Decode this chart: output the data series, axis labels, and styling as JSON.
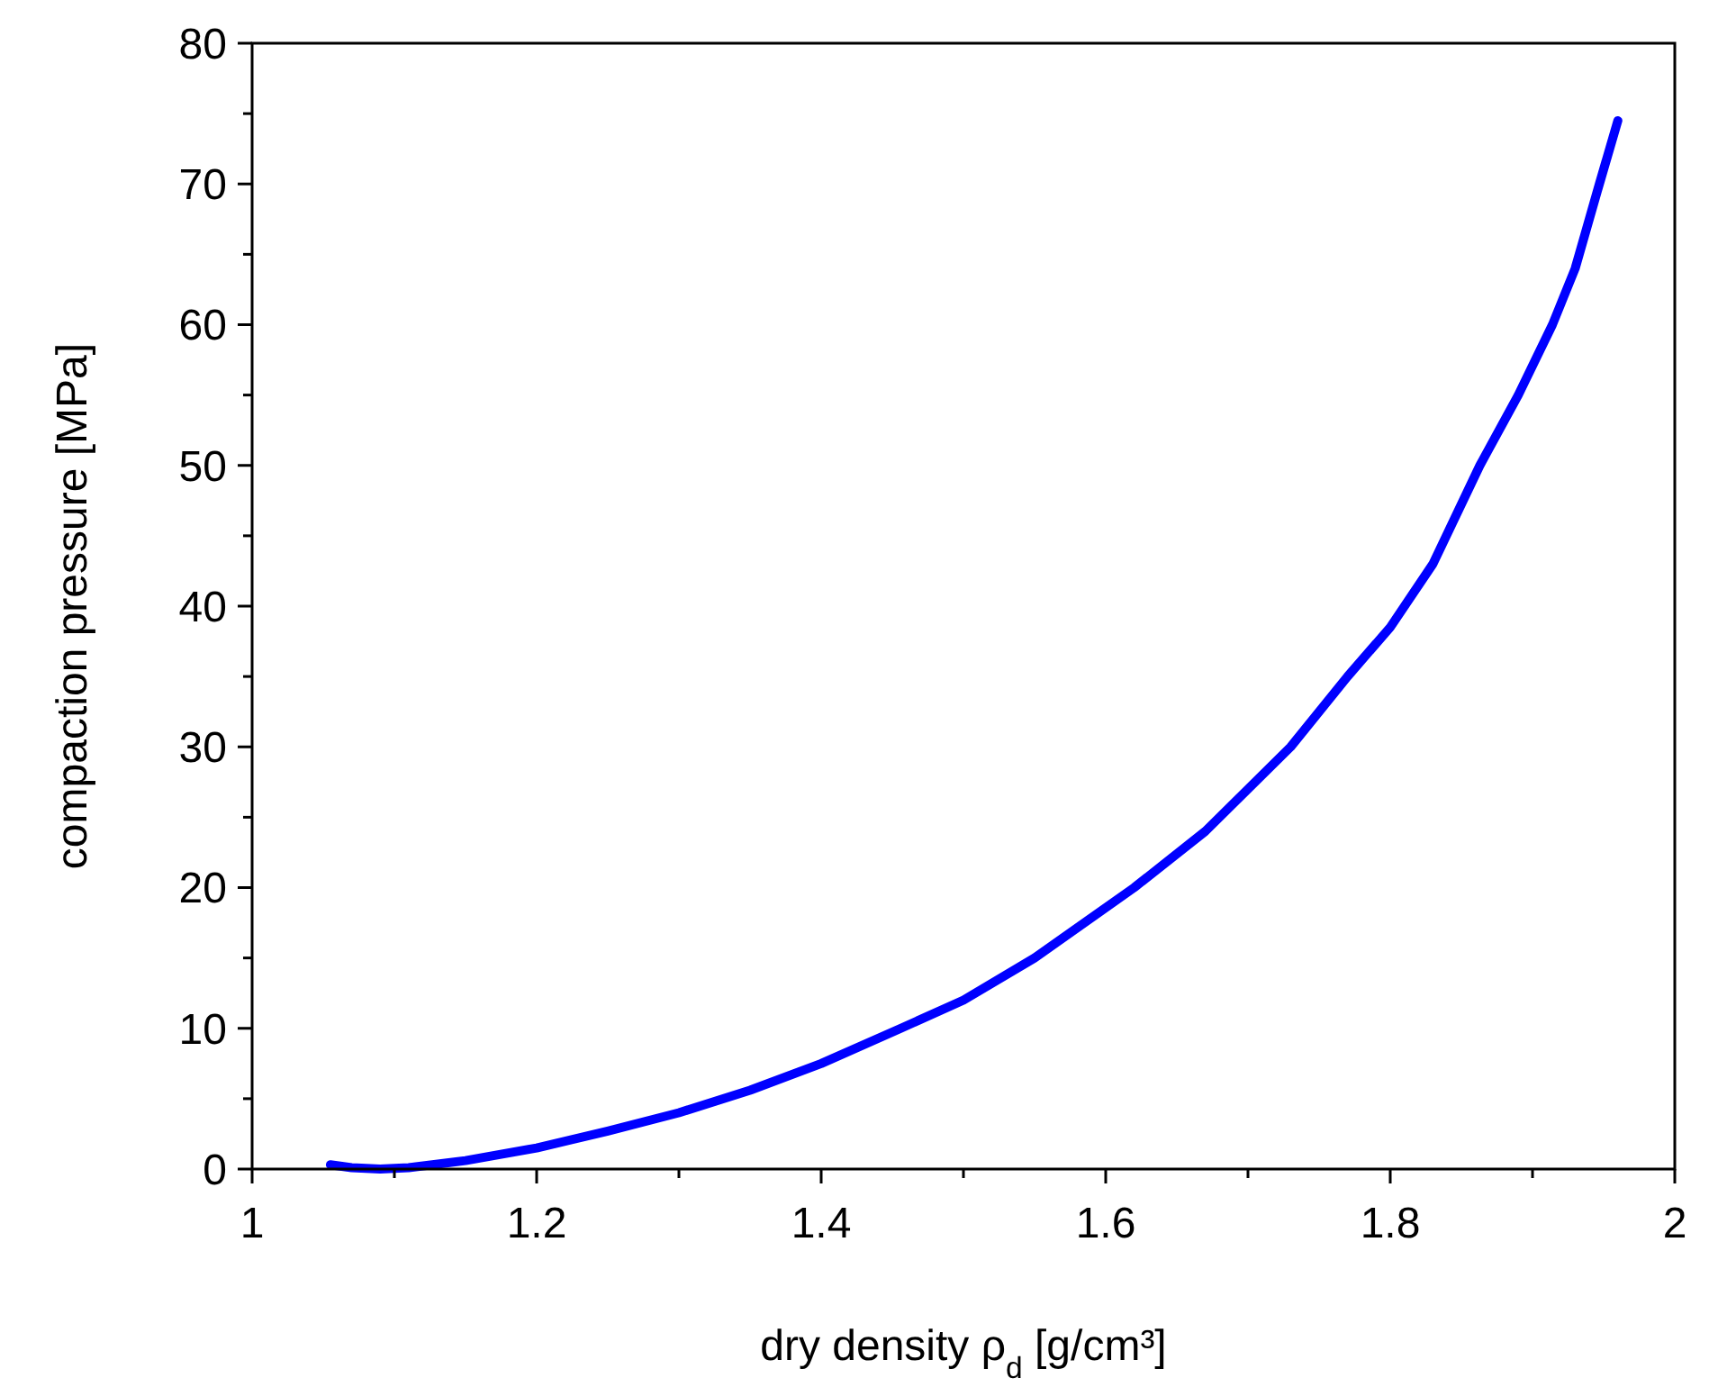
{
  "chart_data": {
    "type": "line",
    "xlabel": "dry density ρ$_{d}$ [g/cm³]",
    "ylabel": "compaction pressure [MPa]",
    "xlim": [
      1,
      2
    ],
    "ylim": [
      0,
      80
    ],
    "xticks": [
      1,
      {
        "value": 1.1,
        "label": null
      },
      1.2,
      {
        "value": 1.3,
        "label": null
      },
      1.4,
      {
        "value": 1.5,
        "label": null
      },
      1.6,
      {
        "value": 1.7,
        "label": null
      },
      1.8,
      {
        "value": 1.9,
        "label": null
      },
      2
    ],
    "yticks": [
      0,
      {
        "value": 5,
        "label": null
      },
      10,
      {
        "value": 15,
        "label": null
      },
      20,
      {
        "value": 25,
        "label": null
      },
      30,
      {
        "value": 35,
        "label": null
      },
      40,
      {
        "value": 45,
        "label": null
      },
      50,
      {
        "value": 55,
        "label": null
      },
      60,
      {
        "value": 65,
        "label": null
      },
      70,
      {
        "value": 75,
        "label": null
      },
      80
    ],
    "grid": false,
    "marker": "none",
    "line_style": "solid",
    "series": [
      {
        "color": "#0000ff",
        "x": [
          1.055,
          1.07,
          1.09,
          1.11,
          1.15,
          1.2,
          1.25,
          1.3,
          1.35,
          1.4,
          1.456,
          1.5,
          1.55,
          1.62,
          1.67,
          1.73,
          1.77,
          1.8,
          1.83,
          1.863,
          1.89,
          1.914,
          1.93,
          1.947,
          1.96
        ],
        "values": [
          0.3,
          0.1,
          0,
          0.1,
          0.6,
          1.5,
          2.7,
          4,
          5.6,
          7.5,
          10,
          12,
          15,
          20,
          24,
          30,
          35,
          38.5,
          43,
          50,
          55,
          60,
          64,
          70,
          74.5
        ]
      }
    ]
  }
}
